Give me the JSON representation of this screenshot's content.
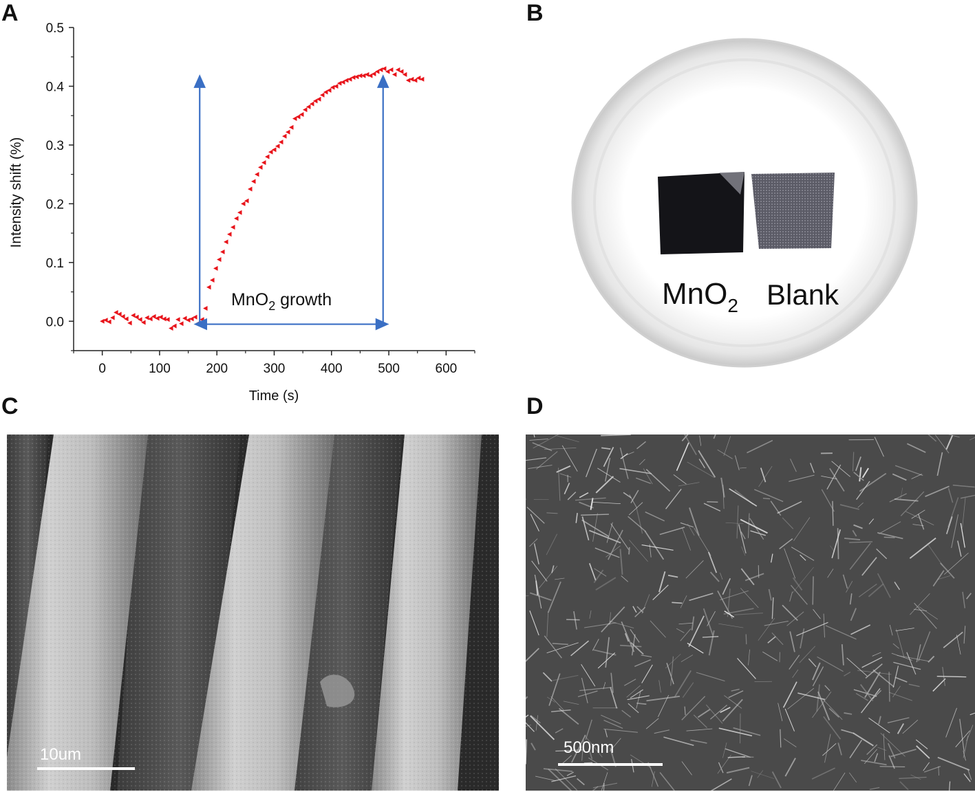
{
  "panels": {
    "a": "A",
    "b": "B",
    "c": "C",
    "d": "D"
  },
  "chart_data": {
    "type": "scatter",
    "xlabel": "Time (s)",
    "ylabel": "Intensity shift (%)",
    "xlim": [
      -50,
      650
    ],
    "ylim": [
      -0.05,
      0.5
    ],
    "xticks": [
      0,
      100,
      200,
      300,
      400,
      500,
      600
    ],
    "yticks": [
      0.0,
      0.1,
      0.2,
      0.3,
      0.4,
      0.5
    ],
    "marker_color": "#e8141b",
    "arrow_color": "#3a6fc4",
    "annotation": {
      "text": "MnO",
      "sub": "2",
      "rest": " growth"
    },
    "arrows": {
      "x_start": 170,
      "x_end": 490,
      "y_base": -0.005,
      "y_top": 0.41
    },
    "series": [
      {
        "x": [
          0,
          6,
          12,
          18,
          24,
          30,
          36,
          42,
          48,
          54,
          60,
          66,
          72,
          78,
          84,
          90,
          96,
          102,
          108,
          114,
          120,
          126,
          132,
          138,
          144,
          150,
          156,
          162,
          168,
          174,
          180,
          186,
          192,
          198,
          204,
          210,
          216,
          222,
          228,
          234,
          240,
          246,
          252,
          258,
          264,
          270,
          276,
          282,
          288,
          294,
          300,
          306,
          312,
          318,
          324,
          330,
          336,
          342,
          348,
          354,
          360,
          366,
          372,
          378,
          384,
          390,
          396,
          402,
          408,
          414,
          420,
          426,
          432,
          438,
          444,
          450,
          456,
          462,
          468,
          474,
          480,
          486,
          492,
          498,
          504,
          510,
          516,
          522,
          528,
          534,
          540,
          546,
          552,
          558
        ],
        "y": [
          0.0,
          0.002,
          -0.001,
          0.006,
          0.015,
          0.012,
          0.008,
          0.004,
          -0.003,
          0.01,
          0.007,
          0.003,
          -0.002,
          0.006,
          0.004,
          0.008,
          0.005,
          0.007,
          0.004,
          0.003,
          -0.012,
          -0.008,
          0.003,
          -0.004,
          0.005,
          0.002,
          0.004,
          0.007,
          -0.003,
          0.003,
          0.022,
          0.058,
          0.07,
          0.09,
          0.105,
          0.118,
          0.135,
          0.148,
          0.16,
          0.175,
          0.185,
          0.2,
          0.205,
          0.225,
          0.238,
          0.25,
          0.262,
          0.27,
          0.28,
          0.288,
          0.292,
          0.298,
          0.305,
          0.315,
          0.322,
          0.33,
          0.345,
          0.348,
          0.352,
          0.36,
          0.365,
          0.37,
          0.375,
          0.378,
          0.385,
          0.39,
          0.393,
          0.398,
          0.4,
          0.405,
          0.407,
          0.41,
          0.412,
          0.415,
          0.416,
          0.418,
          0.418,
          0.42,
          0.418,
          0.421,
          0.425,
          0.428,
          0.43,
          0.425,
          0.428,
          0.42,
          0.428,
          0.425,
          0.42,
          0.41,
          0.412,
          0.41,
          0.414,
          0.412
        ]
      }
    ]
  },
  "photo": {
    "labels": {
      "mno2": "MnO",
      "mno2_sub": "2",
      "blank": "Blank"
    },
    "colors": {
      "dish_rim": "#dcdcdc",
      "sample_dark": "#141418",
      "sample_blank": "#5b5b66"
    }
  },
  "sem_c": {
    "scalebar": "10um"
  },
  "sem_d": {
    "scalebar": "500nm"
  }
}
